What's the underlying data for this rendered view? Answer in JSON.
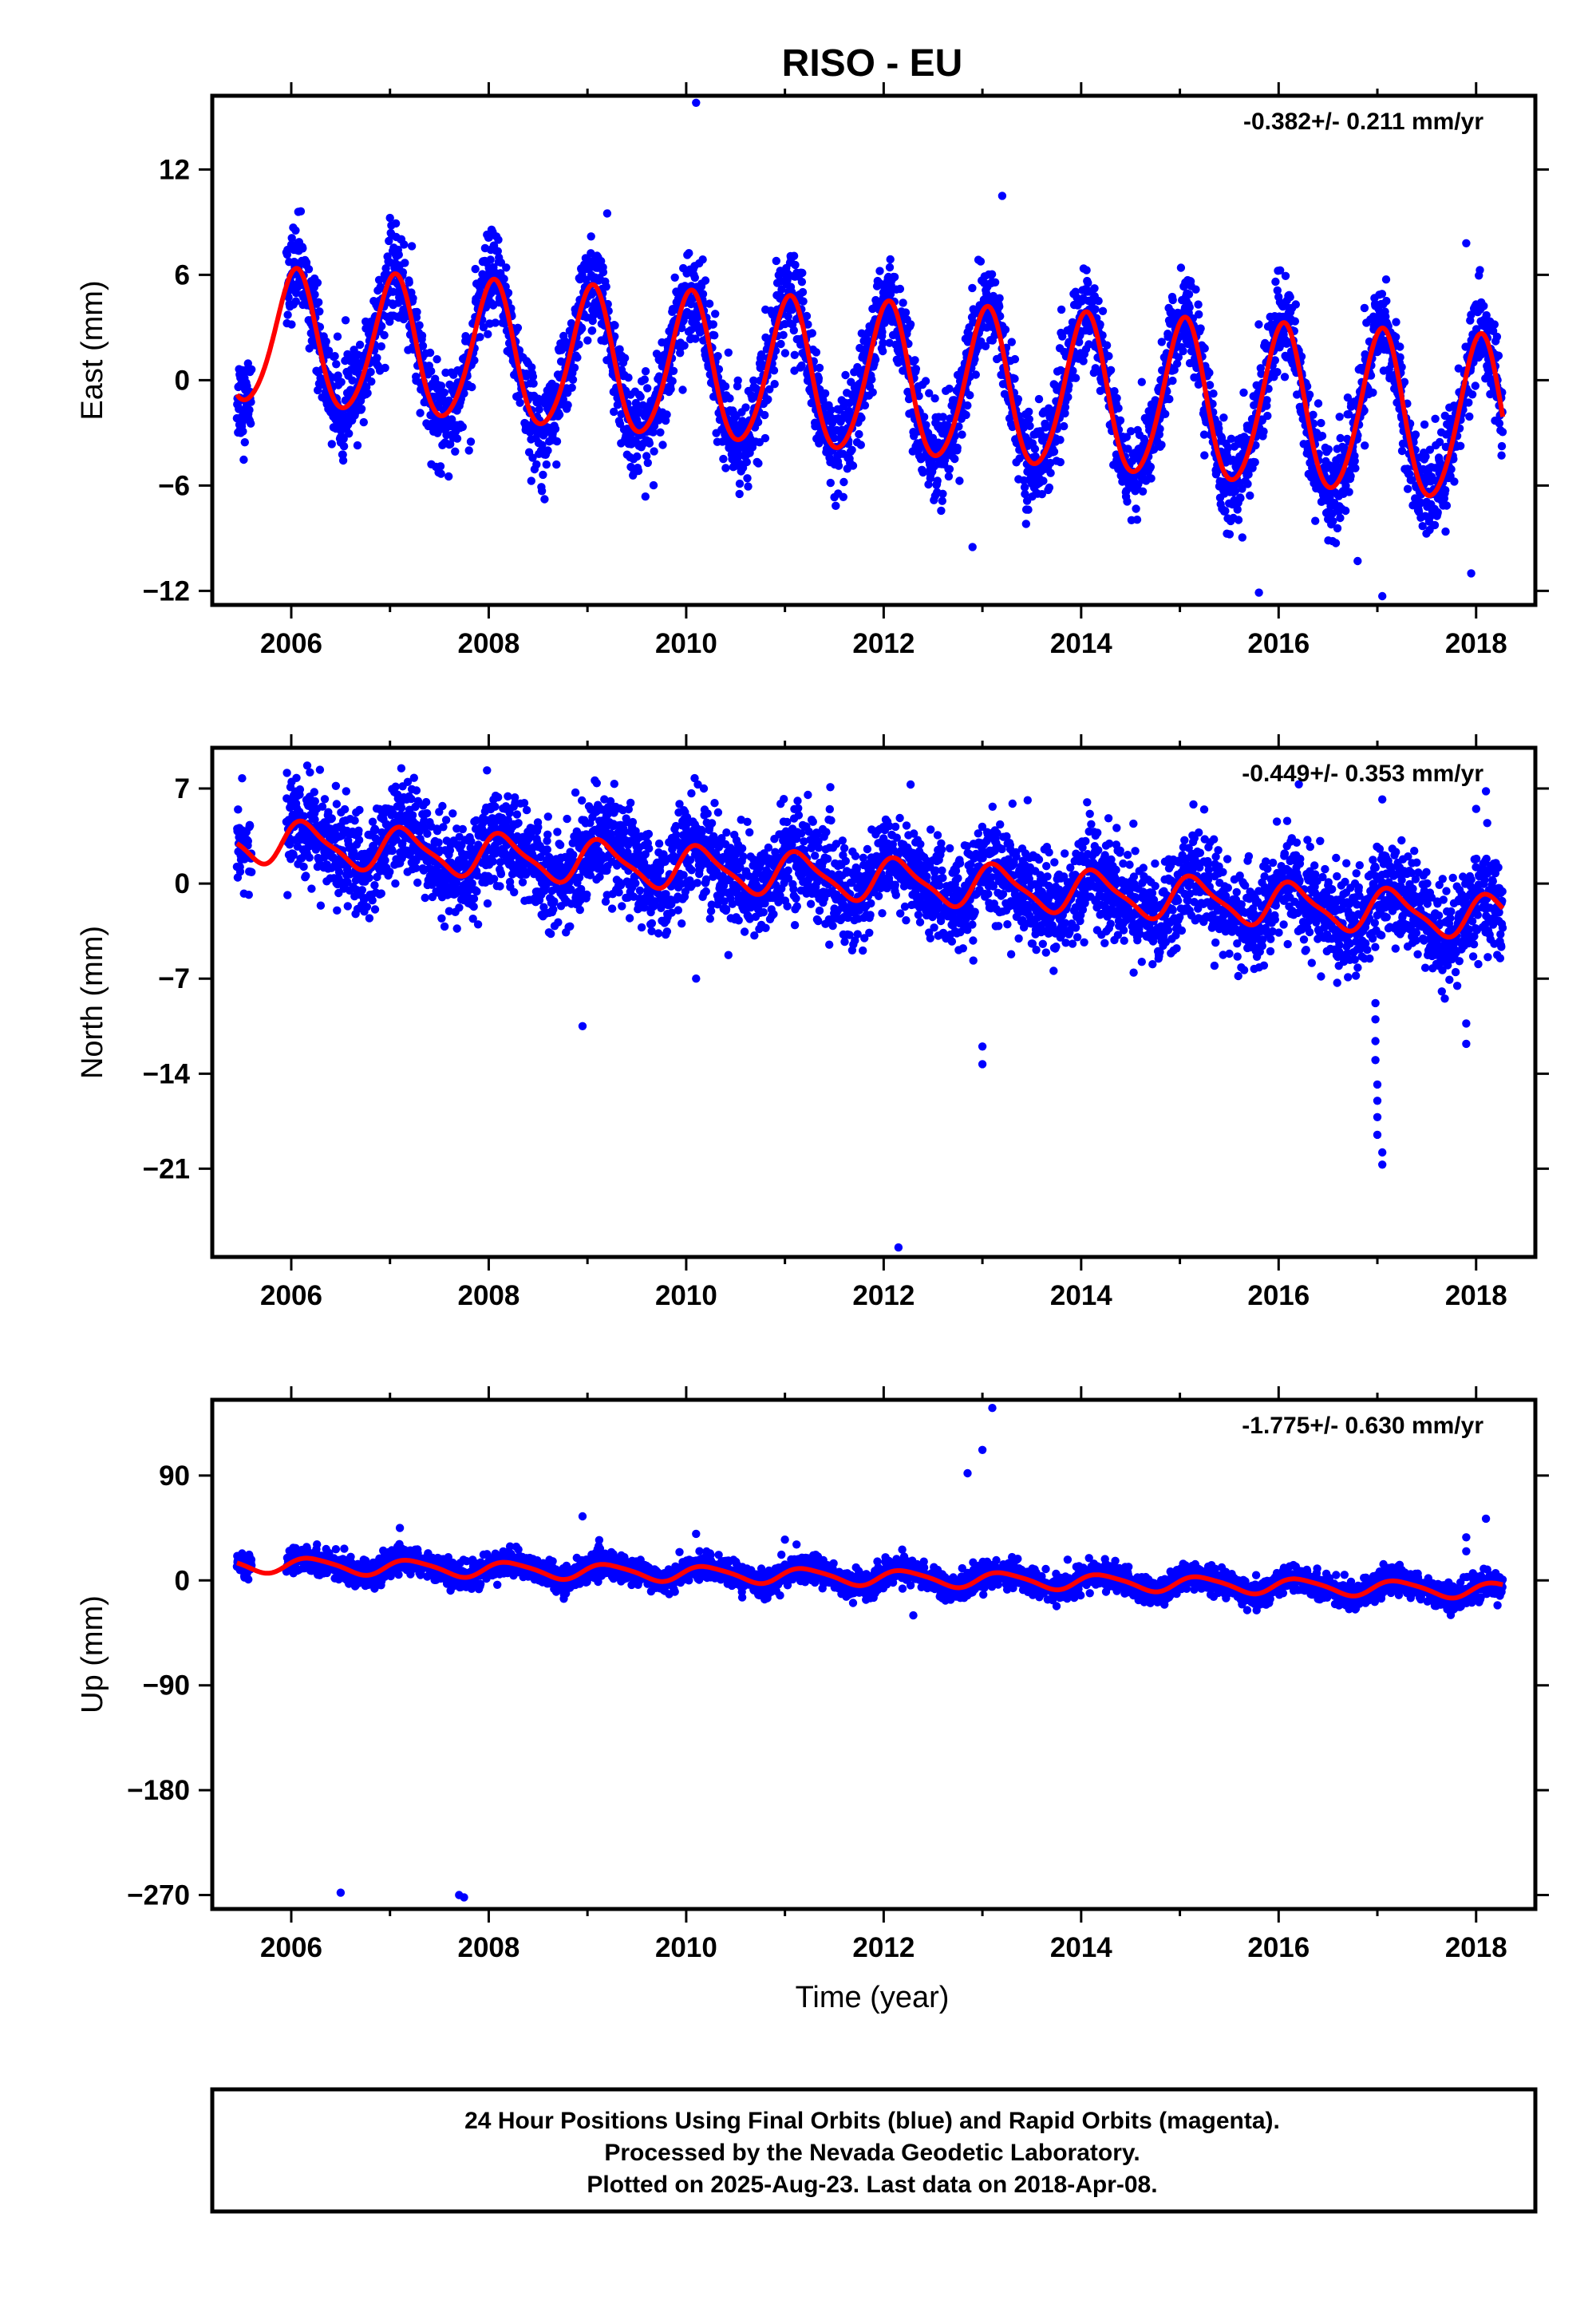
{
  "title": "RISO - EU",
  "xlabel": "Time (year)",
  "footer": {
    "line1": "24 Hour Positions Using Final Orbits (blue) and Rapid Orbits (magenta).",
    "line2": "Processed by the Nevada Geodetic Laboratory.",
    "line3": "Plotted on 2025-Aug-23. Last data on 2018-Apr-08."
  },
  "colors": {
    "points": "#0000ff",
    "fit": "#ff0000",
    "axes": "#000000"
  },
  "chart_data": [
    {
      "type": "scatter",
      "ylabel": "East (mm)",
      "rate_text": "-0.382+/- 0.211 mm/yr",
      "xlim": [
        2005.2,
        2018.6
      ],
      "ylim": [
        -12.8,
        16.2
      ],
      "xticks": [
        2006,
        2008,
        2010,
        2012,
        2014,
        2016,
        2018
      ],
      "xtick_labels": [
        "2006",
        "2008",
        "2010",
        "2012",
        "2014",
        "2016",
        "2018"
      ],
      "yticks": [
        12,
        6,
        0,
        -6,
        -12
      ],
      "ytick_labels": [
        "12",
        "6",
        "0",
        "−6",
        "−12"
      ],
      "data_range": [
        2005.45,
        2018.27
      ],
      "gap": [
        2005.6,
        2005.95
      ],
      "model": {
        "offset": 2.4,
        "trend": -0.382,
        "t0": 2005.45,
        "annual_amp": 3.8,
        "annual_phase": 1.3,
        "semi_amp": 0.4,
        "semi_phase": 0.5
      },
      "noise": 1.3,
      "seasonal_growth": 0.25,
      "outliers": [
        [
          2010.1,
          15.8
        ],
        [
          2013.2,
          10.5
        ],
        [
          2017.9,
          7.8
        ],
        [
          2015.8,
          -12.1
        ],
        [
          2017.05,
          -12.3
        ],
        [
          2016.8,
          -10.3
        ],
        [
          2017.95,
          -11.0
        ],
        [
          2012.9,
          -9.5
        ],
        [
          2009.2,
          9.5
        ],
        [
          2007.8,
          -4.0
        ]
      ]
    },
    {
      "type": "scatter",
      "ylabel": "North (mm)",
      "rate_text": "-0.449+/- 0.353 mm/yr",
      "xlim": [
        2005.2,
        2018.6
      ],
      "ylim": [
        -27.5,
        10.0
      ],
      "xticks": [
        2006,
        2008,
        2010,
        2012,
        2014,
        2016,
        2018
      ],
      "xtick_labels": [
        "2006",
        "2008",
        "2010",
        "2012",
        "2014",
        "2016",
        "2018"
      ],
      "yticks": [
        7,
        0,
        -7,
        -14,
        -21
      ],
      "ytick_labels": [
        "7",
        "0",
        "−7",
        "−14",
        "−21"
      ],
      "data_range": [
        2005.45,
        2018.27
      ],
      "gap": [
        2005.6,
        2005.95
      ],
      "model": {
        "offset": 3.2,
        "trend": -0.449,
        "t0": 2005.45,
        "annual_amp": 1.5,
        "annual_phase": 0.6,
        "semi_amp": 0.4,
        "semi_phase": 1.1
      },
      "noise": 1.8,
      "seasonal_growth": 0.0,
      "outliers": [
        [
          2012.15,
          -26.8
        ],
        [
          2008.95,
          -10.5
        ],
        [
          2013.0,
          -13.3
        ],
        [
          2013.0,
          -12.0
        ],
        [
          2017.05,
          -20.7
        ],
        [
          2017.05,
          -19.8
        ],
        [
          2017.0,
          -18.5
        ],
        [
          2017.0,
          -17.2
        ],
        [
          2017.0,
          -16.0
        ],
        [
          2017.0,
          -14.8
        ],
        [
          2016.98,
          -13.0
        ],
        [
          2016.98,
          -11.6
        ],
        [
          2016.98,
          -10.0
        ],
        [
          2016.98,
          -8.8
        ],
        [
          2017.9,
          -11.8
        ],
        [
          2017.9,
          -10.3
        ],
        [
          2018.1,
          6.8
        ],
        [
          2017.05,
          6.2
        ],
        [
          2010.1,
          -7.0
        ],
        [
          2018.0,
          5.5
        ]
      ]
    },
    {
      "type": "scatter",
      "ylabel": "Up (mm)",
      "rate_text": "-1.775+/- 0.630 mm/yr",
      "xlim": [
        2005.2,
        2018.6
      ],
      "ylim": [
        -282,
        155
      ],
      "xticks": [
        2006,
        2008,
        2010,
        2012,
        2014,
        2016,
        2018
      ],
      "xtick_labels": [
        "2006",
        "2008",
        "2010",
        "2012",
        "2014",
        "2016",
        "2018"
      ],
      "yticks": [
        90,
        0,
        -90,
        -180,
        -270
      ],
      "ytick_labels": [
        "90",
        "0",
        "−90",
        "−180",
        "−270"
      ],
      "data_range": [
        2005.45,
        2018.27
      ],
      "gap": [
        2005.6,
        2005.95
      ],
      "model": {
        "offset": 14,
        "trend": -1.775,
        "t0": 2005.45,
        "annual_amp": 6.5,
        "annual_phase": 0.2,
        "semi_amp": 1.2,
        "semi_phase": 0.9
      },
      "noise": 5.5,
      "seasonal_growth": 0.0,
      "outliers": [
        [
          2006.5,
          -268
        ],
        [
          2007.7,
          -270
        ],
        [
          2007.75,
          -272
        ],
        [
          2013.1,
          148
        ],
        [
          2013.0,
          112
        ],
        [
          2012.85,
          92
        ],
        [
          2008.95,
          55
        ],
        [
          2007.1,
          45
        ],
        [
          2018.1,
          53
        ],
        [
          2017.9,
          37
        ],
        [
          2010.1,
          40
        ],
        [
          2011.0,
          35
        ],
        [
          2012.3,
          -30
        ],
        [
          2017.9,
          25
        ],
        [
          2013.3,
          20
        ]
      ]
    }
  ]
}
